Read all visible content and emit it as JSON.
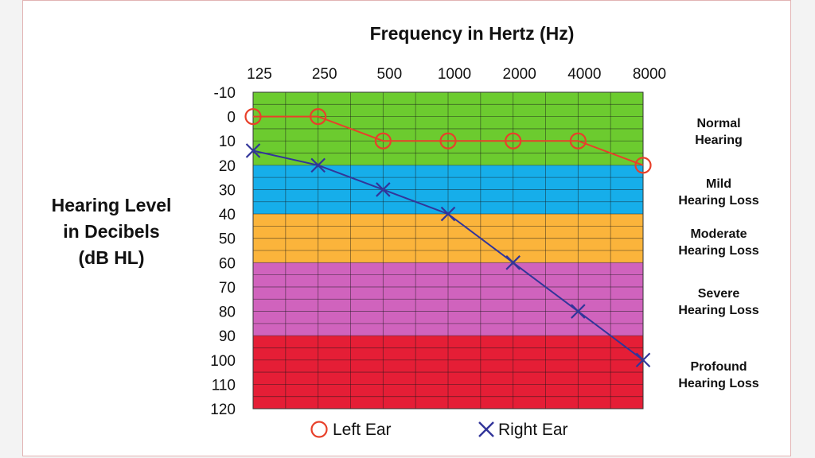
{
  "chart_data": {
    "type": "line",
    "title": "Frequency in Hertz (Hz)",
    "xlabel": "",
    "ylabel": [
      "Hearing Level",
      "in Decibels",
      "(dB HL)"
    ],
    "x_axis_position": "top",
    "x": [
      "125",
      "250",
      "500",
      "1000",
      "2000",
      "4000",
      "8000"
    ],
    "y_ticks": [
      "-10",
      "0",
      "10",
      "20",
      "30",
      "40",
      "50",
      "60",
      "70",
      "80",
      "90",
      "100",
      "110",
      "120"
    ],
    "ylim": [
      -10,
      120
    ],
    "y_inverted": true,
    "grid": true,
    "bands": [
      {
        "from": -10,
        "to": 20,
        "color": "#6ccb2f",
        "label": [
          "Normal",
          "Hearing"
        ]
      },
      {
        "from": 20,
        "to": 40,
        "color": "#16aeea",
        "label": [
          "Mild",
          "Hearing Loss"
        ]
      },
      {
        "from": 40,
        "to": 60,
        "color": "#fbb43b",
        "label": [
          "Moderate",
          "Hearing Loss"
        ]
      },
      {
        "from": 60,
        "to": 90,
        "color": "#d063bd",
        "label": [
          "Severe",
          "Hearing Loss"
        ]
      },
      {
        "from": 90,
        "to": 120,
        "color": "#e51e36",
        "label": [
          "Profound",
          "Hearing Loss"
        ]
      }
    ],
    "series": [
      {
        "name": "Left Ear",
        "marker": "circle",
        "color": "#e8402a",
        "values": [
          0,
          0,
          10,
          10,
          10,
          10,
          20
        ]
      },
      {
        "name": "Right Ear",
        "marker": "x",
        "color": "#32359a",
        "values": [
          14,
          20,
          30,
          40,
          60,
          80,
          100
        ]
      }
    ],
    "legend_position": "bottom"
  }
}
